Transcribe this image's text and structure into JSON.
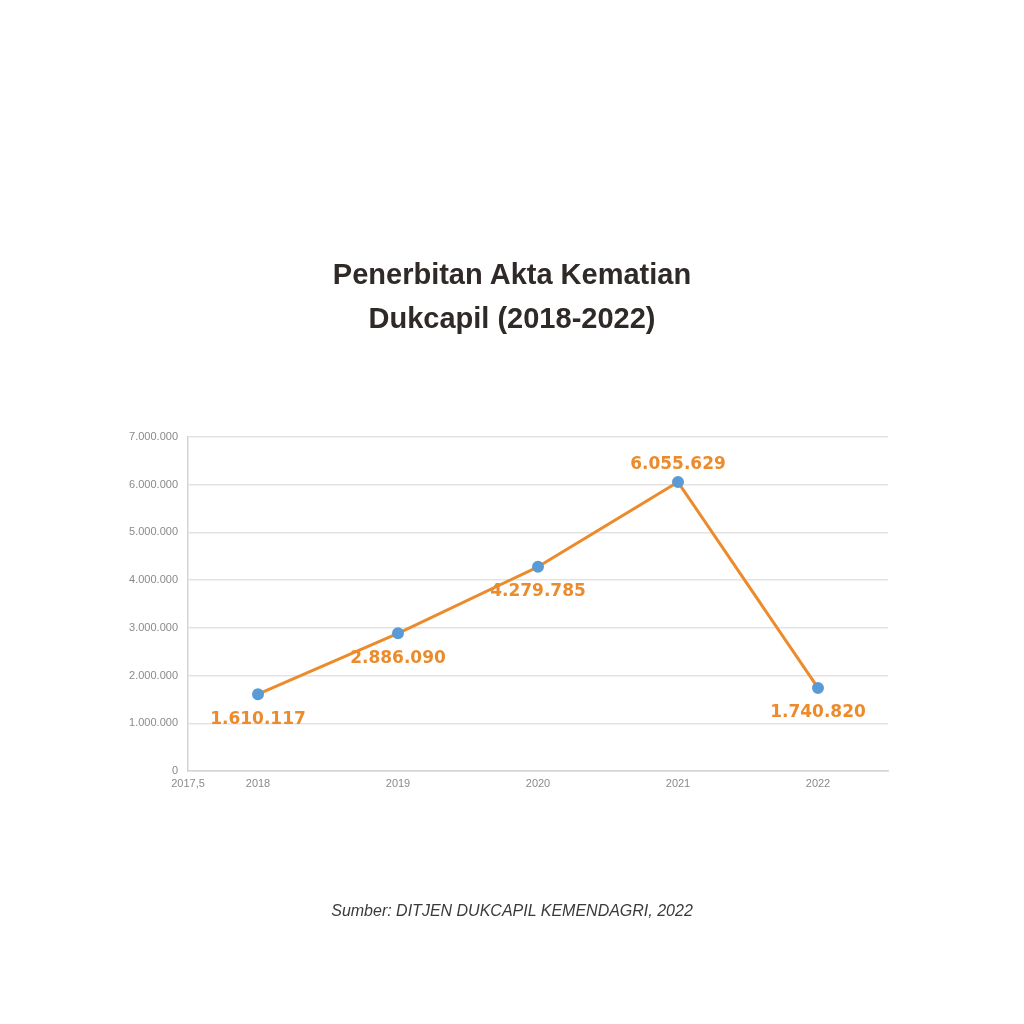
{
  "chart_data": {
    "type": "line",
    "title": "Penerbitan Akta Kematian\nDukcapil (2018-2022)",
    "x": [
      2018,
      2019,
      2020,
      2021,
      2022
    ],
    "series": [
      {
        "color": "#ec8b2c",
        "colors": [
          "#5b9bd5",
          "#5b9bd5",
          "#5b9bd5",
          "#5b9bd5",
          "#5b9bd5"
        ],
        "values": [
          1610117,
          2886090,
          4279785,
          6055629,
          1740820
        ],
        "value_labels": [
          "1.610.117",
          "2.886.090",
          "4.279.785",
          "6.055.629",
          "1.740.820"
        ]
      }
    ],
    "xlim": [
      2017.5,
      2022.5
    ],
    "xticks": [
      {
        "value": 2017.5,
        "label": "2017,5"
      },
      2018,
      2019,
      2020,
      2021,
      2022
    ],
    "ylim": [
      0,
      7000000
    ],
    "yticks": [
      0,
      {
        "value": 1000000,
        "label": "1.000.000"
      },
      {
        "value": 2000000,
        "label": "2.000.000"
      },
      {
        "value": 3000000,
        "label": "3.000.000"
      },
      {
        "value": 4000000,
        "label": "4.000.000"
      },
      {
        "value": 5000000,
        "label": "5.000.000"
      },
      {
        "value": 6000000,
        "label": "6.000.000"
      },
      {
        "value": 7000000,
        "label": "7.000.000"
      }
    ],
    "grid": "y",
    "legend": false,
    "marker": "circle",
    "annotations": [
      "Sumber: DITJEN DUKCAPIL KEMENDAGRI, 2022"
    ]
  }
}
